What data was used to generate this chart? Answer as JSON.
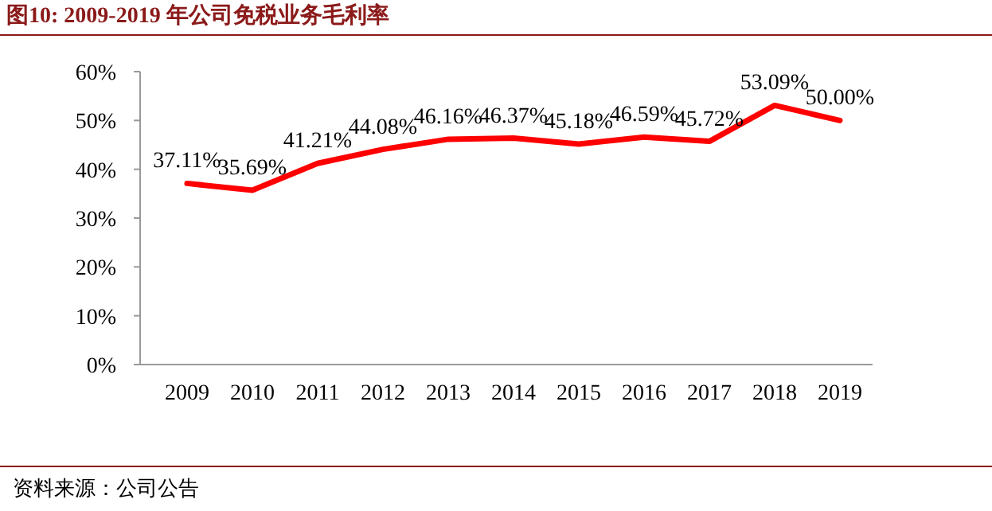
{
  "chart_data": {
    "type": "line",
    "title": "图10:    2009-2019 年公司免税业务毛利率",
    "categories": [
      "2009",
      "2010",
      "2011",
      "2012",
      "2013",
      "2014",
      "2015",
      "2016",
      "2017",
      "2018",
      "2019"
    ],
    "series": [
      {
        "color": "#ff0000",
        "values": [
          37.11,
          35.69,
          41.21,
          44.08,
          46.16,
          46.37,
          45.18,
          46.59,
          45.72,
          53.09,
          50.0
        ],
        "value_labels": [
          "37.11%",
          "35.69%",
          "41.21%",
          "44.08%",
          "46.16%",
          "46.37%",
          "45.18%",
          "46.59%",
          "45.72%",
          "53.09%",
          "50.00%"
        ]
      }
    ],
    "ylim": [
      0,
      60
    ],
    "yticks": [
      {
        "value": 0,
        "label": "0%"
      },
      {
        "value": 10,
        "label": "10%"
      },
      {
        "value": 20,
        "label": "20%"
      },
      {
        "value": 30,
        "label": "30%"
      },
      {
        "value": 40,
        "label": "40%"
      },
      {
        "value": 50,
        "label": "50%"
      },
      {
        "value": 60,
        "label": "60%"
      }
    ],
    "marker": "none",
    "line_style": "solid",
    "annotations": [
      "资料来源：公司公告"
    ]
  }
}
